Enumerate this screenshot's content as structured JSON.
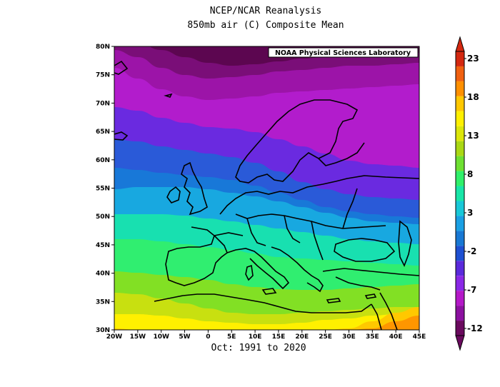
{
  "title_line1": "NCEP/NCAR Reanalysis",
  "title_line2": "850mb air (C) Composite Mean",
  "credit": "NOAA Physical Sciences Laboratory",
  "footer": "Oct: 1991 to 2020",
  "lat_labels": [
    "80N",
    "75N",
    "70N",
    "65N",
    "60N",
    "55N",
    "50N",
    "45N",
    "40N",
    "35N",
    "30N"
  ],
  "lon_labels": [
    "20W",
    "15W",
    "10W",
    "5W",
    "0",
    "5E",
    "10E",
    "15E",
    "20E",
    "25E",
    "30E",
    "35E",
    "40E",
    "45E"
  ],
  "colorbar_labels": [
    "23",
    "18",
    "13",
    "8",
    "3",
    "-2",
    "-7",
    "-12"
  ],
  "colorbar_colors": [
    "#6a0a5e",
    "#8c10a0",
    "#b418c8",
    "#8a28e6",
    "#5a2adc",
    "#1e50d2",
    "#1878d4",
    "#1aa0e4",
    "#18c8d8",
    "#18e6a8",
    "#30f06a",
    "#6ee032",
    "#aad814",
    "#dce60a",
    "#fff000",
    "#ffc800",
    "#ff9000",
    "#f06010",
    "#d42810"
  ],
  "bands": [
    {
      "color": "#7a0e78",
      "ys": [
        55,
        60,
        70,
        80,
        88,
        92,
        90,
        86,
        82,
        80,
        78,
        78,
        76,
        74
      ]
    },
    {
      "color": "#9c14a8",
      "ys": [
        70,
        80,
        95,
        105,
        110,
        108,
        105,
        100,
        98,
        95,
        92,
        92,
        90,
        88
      ]
    },
    {
      "color": "#b21ccc",
      "ys": [
        95,
        110,
        125,
        135,
        140,
        138,
        135,
        130,
        128,
        126,
        124,
        122,
        120,
        118
      ]
    },
    {
      "color": "#6a2ae0",
      "ys": [
        150,
        155,
        165,
        172,
        178,
        180,
        185,
        195,
        205,
        215,
        225,
        230,
        232,
        235
      ]
    },
    {
      "color": "#2a5ad8",
      "ys": [
        195,
        198,
        205,
        210,
        215,
        220,
        228,
        240,
        255,
        265,
        272,
        276,
        278,
        280
      ]
    },
    {
      "color": "#1878d8",
      "ys": [
        235,
        238,
        242,
        245,
        248,
        252,
        260,
        270,
        280,
        290,
        296,
        300,
        303,
        305
      ]
    },
    {
      "color": "#18a8e0",
      "ys": [
        265,
        262,
        262,
        262,
        265,
        270,
        275,
        282,
        290,
        298,
        305,
        310,
        312,
        314
      ]
    },
    {
      "color": "#18e0b0",
      "ys": [
        300,
        300,
        300,
        302,
        306,
        310,
        315,
        320,
        325,
        330,
        335,
        338,
        340,
        342
      ]
    },
    {
      "color": "#30ee70",
      "ys": [
        335,
        335,
        338,
        342,
        346,
        350,
        355,
        360,
        362,
        364,
        366,
        368,
        370,
        372
      ]
    },
    {
      "color": "#82e024",
      "ys": [
        380,
        382,
        385,
        388,
        392,
        398,
        402,
        405,
        406,
        406,
        404,
        402,
        400,
        398
      ]
    },
    {
      "color": "#c8e010",
      "ys": [
        410,
        412,
        418,
        425,
        432,
        438,
        440,
        440,
        438,
        436,
        434,
        432,
        430,
        430
      ]
    },
    {
      "color": "#fff000",
      "ys": [
        440,
        440,
        442,
        446,
        450,
        452,
        454,
        454,
        452,
        448,
        446,
        442,
        440,
        438
      ]
    },
    {
      "color": "#ffc800",
      "ys": [
        460,
        462,
        462,
        462,
        462,
        462,
        462,
        462,
        462,
        462,
        460,
        450,
        438,
        430
      ]
    },
    {
      "color": "#ff9600",
      "ys": [
        462,
        462,
        462,
        462,
        462,
        462,
        462,
        462,
        462,
        462,
        462,
        460,
        450,
        442
      ]
    }
  ]
}
